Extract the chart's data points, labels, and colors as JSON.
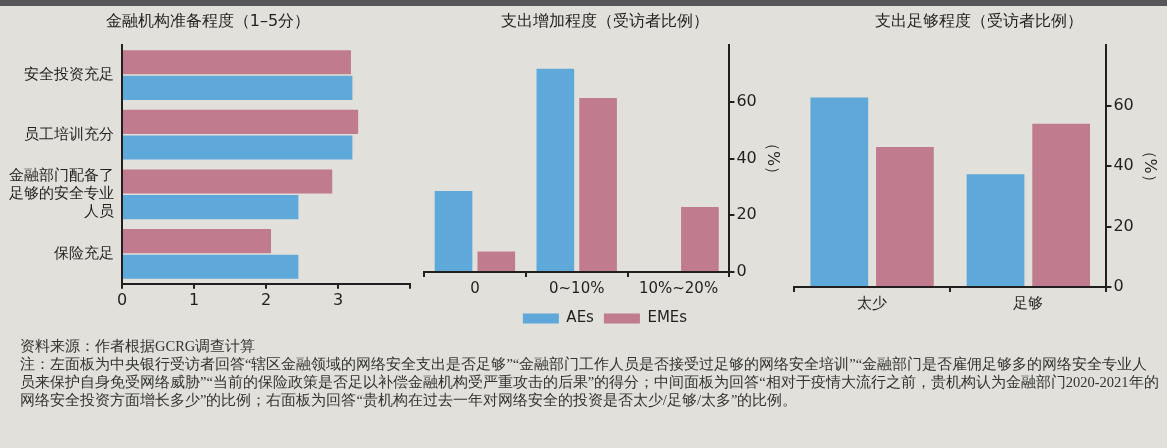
{
  "chart_data": [
    {
      "type": "bar",
      "orientation": "horizontal",
      "title": "金融机构准备程度（1–5分）",
      "categories": [
        "安全投资充足",
        "员工培训充分",
        "金融部门配备了足够的安全专业人员",
        "保险充足"
      ],
      "series": [
        {
          "color": "#5fa8da",
          "values": [
            3.2,
            3.2,
            2.45,
            2.45
          ]
        },
        {
          "color": "#c07b8f",
          "values": [
            3.18,
            3.28,
            2.92,
            2.07
          ]
        }
      ],
      "xlim": [
        0,
        4
      ],
      "xticks": [
        0,
        1,
        2,
        3,
        {
          "value": 4,
          "label": null
        }
      ],
      "grid": false,
      "legend": false
    },
    {
      "type": "bar",
      "title": "支出增加程度（受访者比例）",
      "categories": [
        "0",
        "0~10%",
        "10%~20%"
      ],
      "ylabel": "（%）",
      "series": [
        {
          "name": "AEs",
          "color": "#5fa8da",
          "values": [
            28.6,
            71.7,
            0
          ]
        },
        {
          "name": "EMEs",
          "color": "#c07b8f",
          "values": [
            7.2,
            61.4,
            22.9
          ]
        }
      ],
      "ylim": [
        0,
        80
      ],
      "yticks": [
        0,
        20,
        40,
        60
      ],
      "grid": false,
      "legend": "bottom"
    },
    {
      "type": "bar",
      "title": "支出足够程度（受访者比例）",
      "categories": [
        "太少",
        "足够"
      ],
      "ylabel": "（%）",
      "series": [
        {
          "color": "#5fa8da",
          "values": [
            62.7,
            37.3
          ]
        },
        {
          "color": "#c07b8f",
          "values": [
            46.3,
            54.0
          ]
        }
      ],
      "ylim": [
        0,
        80
      ],
      "yticks": [
        0,
        20,
        40,
        60
      ],
      "grid": false,
      "legend": false,
      "annotations": [
        "资料来源：作者根据GCRG调查计算",
        "注：左面板为中央银行受访者回答“辖区金融领域的网络安全支出是否足够”“金融部门工作人员是否接受过足够的网络安全培训”“金融部门是否雇佣足够多的网络安全专业人员来保护自身免受网络威胁”“当前的保险政策是否足以补偿金融机构受严重攻击的后果”的得分；中间面板为回答“相对于疫情大流行之前，贵机构认为金融部门2020-2021年的网络安全投资方面增长多少”的比例；右面板为回答“贵机构在过去一年对网络安全的投资是否太少/足够/太多”的比例。"
      ]
    }
  ]
}
